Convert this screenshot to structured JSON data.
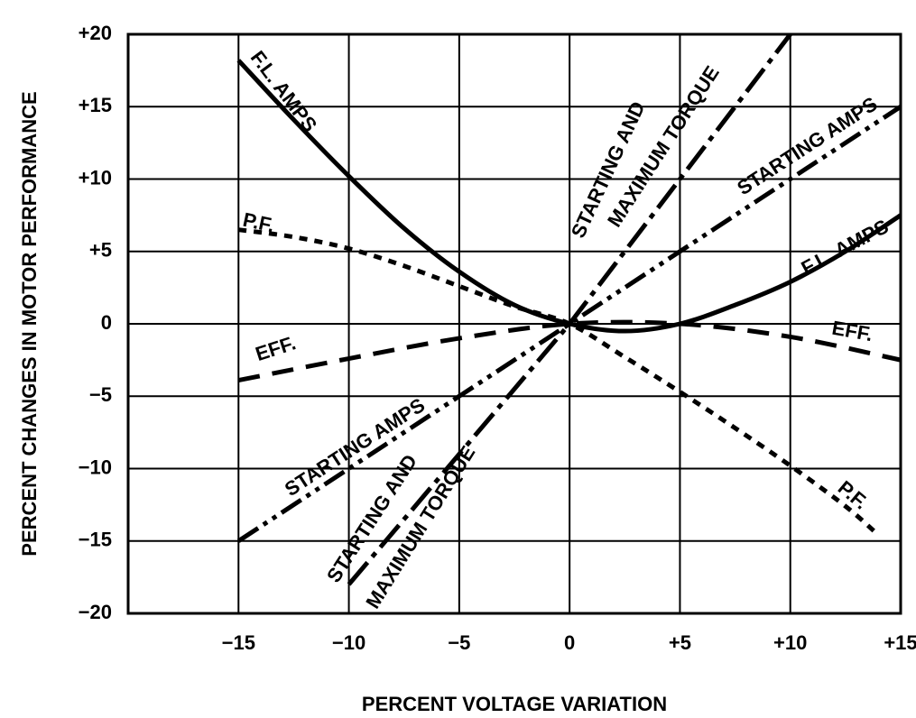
{
  "chart_data": {
    "type": "line",
    "title": "",
    "xlabel": "PERCENT VOLTAGE VARIATION",
    "ylabel": "PERCENT CHANGES IN MOTOR PERFORMANCE",
    "xlim": [
      -20,
      15
    ],
    "ylim": [
      -20,
      20
    ],
    "grid": true,
    "x_ticks": [
      -15,
      -10,
      -5,
      0,
      5,
      10,
      15
    ],
    "x_tick_labels": [
      "−15",
      "−10",
      "−5",
      "0",
      "+5",
      "+10",
      "+15"
    ],
    "y_ticks": [
      20,
      15,
      10,
      5,
      0,
      -5,
      -10,
      -15,
      -20
    ],
    "y_tick_labels": [
      "+20",
      "+15",
      "+10",
      "+5",
      "0",
      "−5",
      "−10",
      "−15",
      "−20"
    ],
    "series": [
      {
        "name": "F.L. AMPS",
        "style": "solid",
        "x": [
          -15,
          -12.5,
          -10,
          -7.5,
          -5,
          -2.5,
          0,
          2.5,
          5,
          7.5,
          10,
          12.5,
          15
        ],
        "y": [
          18.2,
          14.1,
          10.2,
          6.6,
          3.6,
          1.3,
          0,
          -0.5,
          0,
          1.3,
          2.9,
          5.0,
          7.5
        ]
      },
      {
        "name": "P.F.",
        "style": "dotted",
        "x": [
          -15,
          -12.5,
          -10,
          -7.5,
          -5,
          -2.5,
          0,
          2.5,
          5,
          7.5,
          10,
          12.5,
          14
        ],
        "y": [
          6.5,
          6.0,
          5.2,
          4.0,
          2.6,
          1.2,
          0,
          -2.3,
          -4.7,
          -7.2,
          -9.8,
          -12.6,
          -14.6
        ]
      },
      {
        "name": "EFF.",
        "style": "dashed",
        "x": [
          -15,
          -10,
          -5,
          0,
          5,
          10,
          15
        ],
        "y": [
          -3.9,
          -2.4,
          -1.0,
          0,
          0,
          -0.9,
          -2.5
        ]
      },
      {
        "name": "STARTING AMPS",
        "style": "dash-dot-dot",
        "x": [
          -15,
          0,
          15
        ],
        "y": [
          -15,
          0,
          15
        ]
      },
      {
        "name": "STARTING AND MAXIMUM TORQUE",
        "style": "dash-dot",
        "x": [
          -10,
          0,
          10
        ],
        "y": [
          -18,
          0,
          20
        ]
      }
    ],
    "annotations": [
      {
        "text": "F.L. AMPS",
        "x": -13,
        "y": 16,
        "rotate": 53
      },
      {
        "text": "F.L. AMPS",
        "x": 12.5,
        "y": 5.2,
        "rotate": -28
      },
      {
        "text": "P.F.",
        "x": -14.1,
        "y": 6.9,
        "rotate": 12
      },
      {
        "text": "P.F.",
        "x": 12.8,
        "y": -11.9,
        "rotate": 40
      },
      {
        "text": "EFF.",
        "x": -13.3,
        "y": -1.8,
        "rotate": -18
      },
      {
        "text": "EFF.",
        "x": 12.8,
        "y": -0.6,
        "rotate": 10
      },
      {
        "text": "STARTING AMPS",
        "x": 10.8,
        "y": 12.2,
        "rotate": -33
      },
      {
        "text": "STARTING AMPS",
        "x": -9.7,
        "y": -8.6,
        "rotate": -33
      },
      {
        "text": "STARTING AND",
        "x": 1.8,
        "y": 10.6,
        "rotate": -65
      },
      {
        "text": "MAXIMUM TORQUE",
        "x": 4.3,
        "y": 12.2,
        "rotate": -57
      },
      {
        "text": "STARTING AND",
        "x": -8.9,
        "y": -13.5,
        "rotate": -57
      },
      {
        "text": "MAXIMUM TORQUE",
        "x": -6.7,
        "y": -14.1,
        "rotate": -58
      }
    ]
  }
}
